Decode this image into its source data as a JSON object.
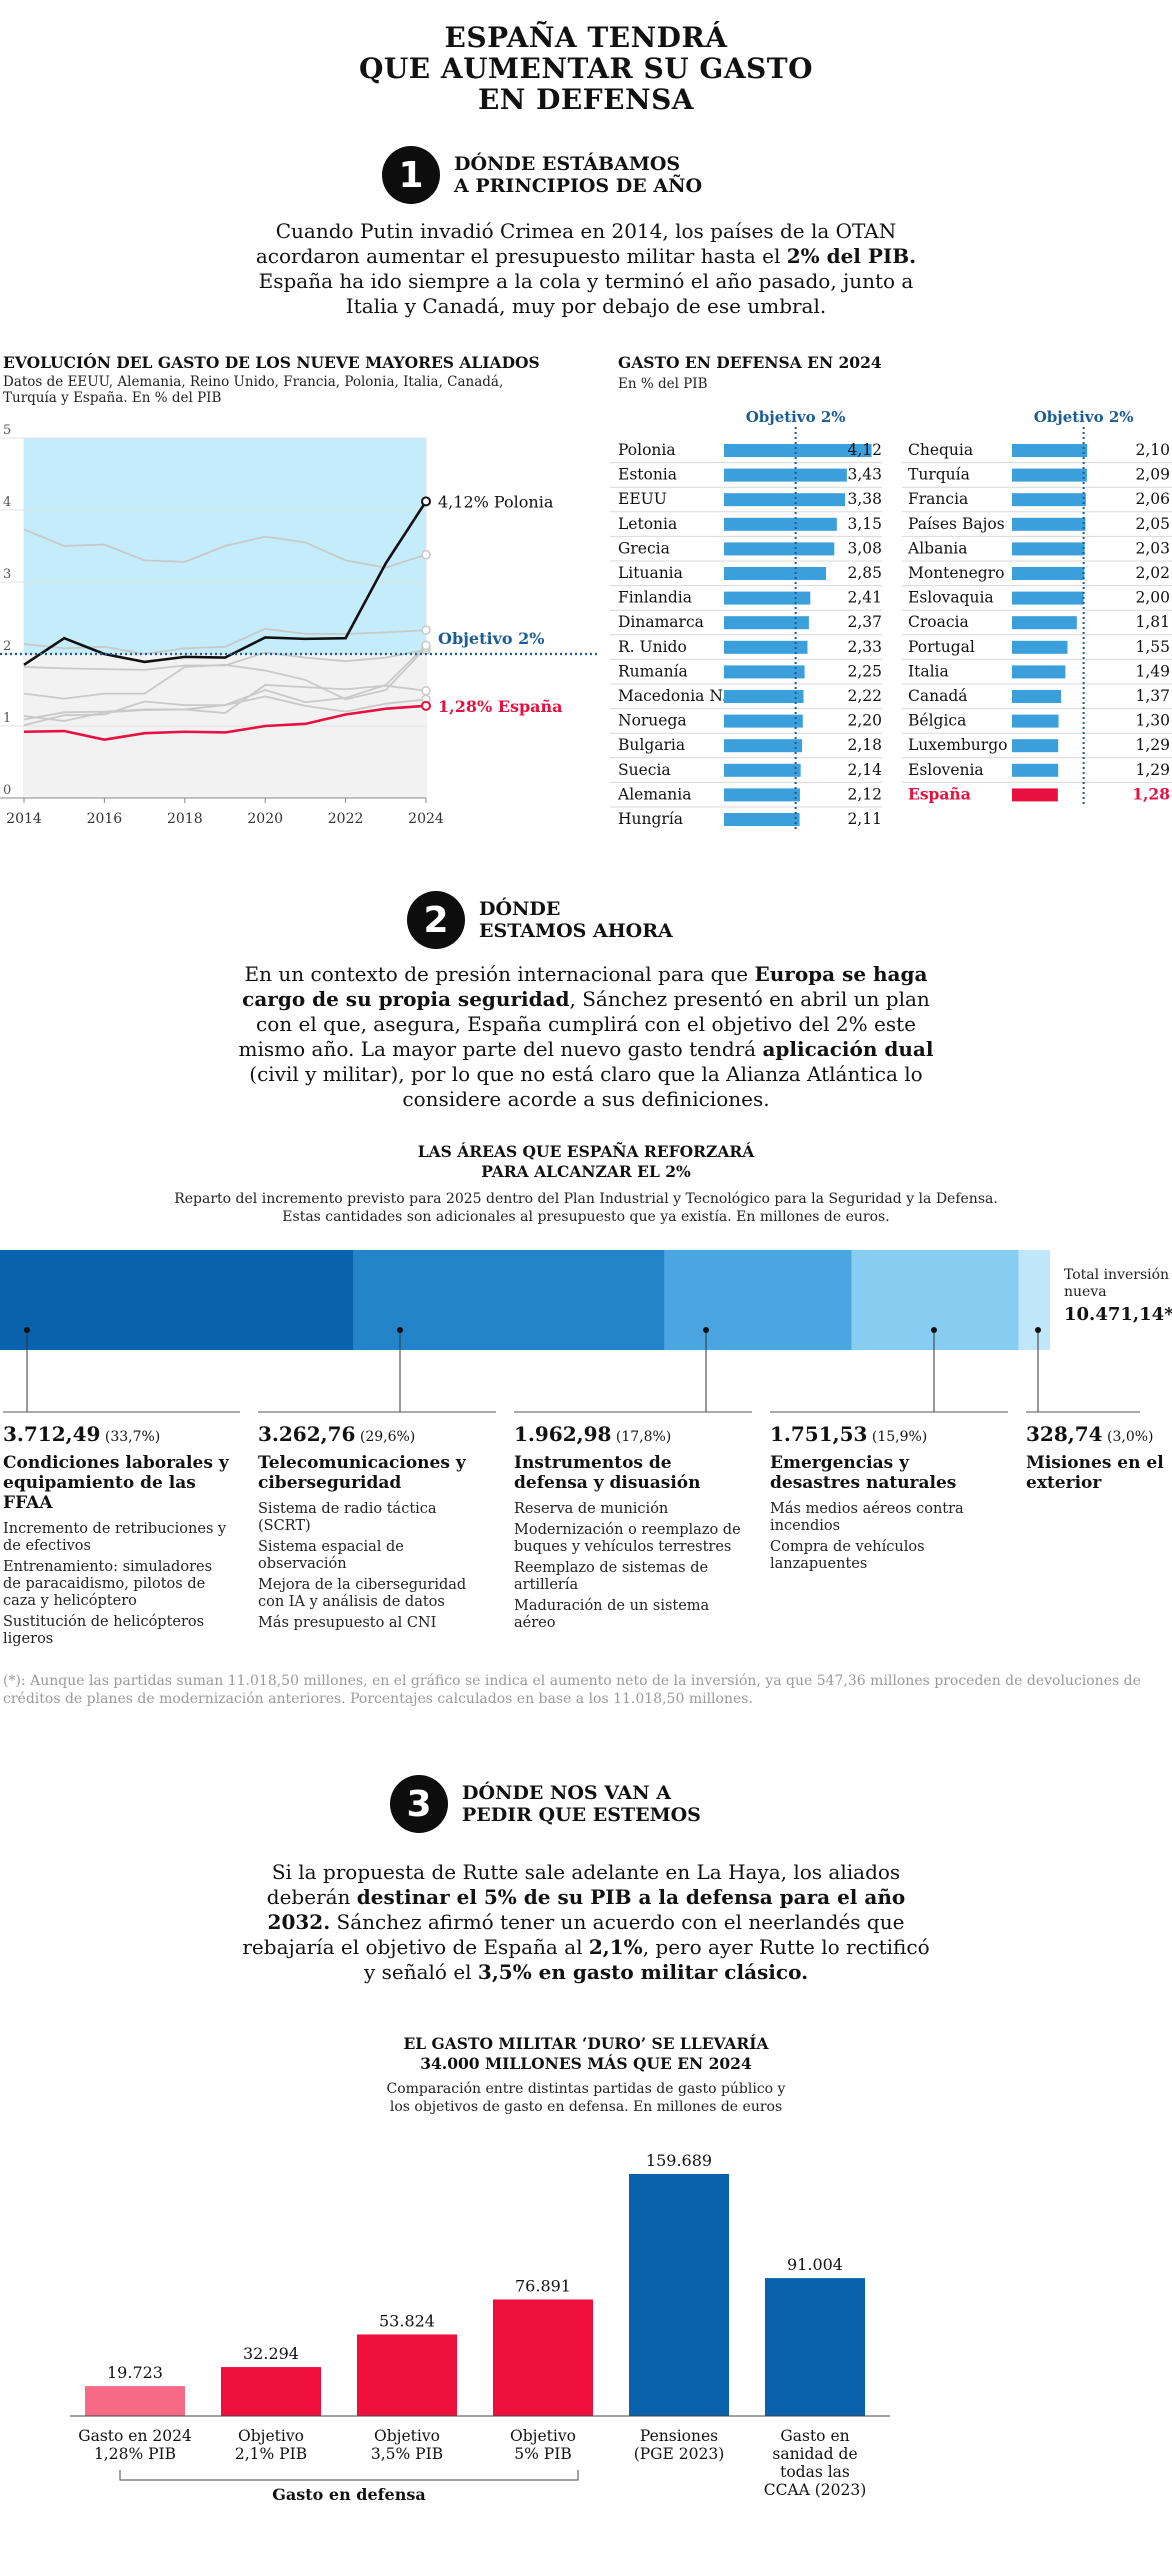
{
  "title": "ESPAÑA TENDRÁ\nQUE AUMENTAR SU GASTO\nEN DEFENSA",
  "section1": {
    "num": "1",
    "title": "DÓNDE ESTÁBAMOS\nA PRINCIPIOS DE AÑO",
    "text_a": "Cuando Putin invadió Crimea en 2014, los países de la OTAN acordaron aumentar el presupuesto militar hasta el ",
    "text_b": "2% del PIB.",
    "text_c": " España ha ido siempre a la cola y terminó el año pasado, junto a Italia y Canadá, muy por debajo de ese umbral."
  },
  "section2": {
    "num": "2",
    "title": "DÓNDE\nESTAMOS AHORA",
    "text_a": "En un contexto de presión internacional para que ",
    "text_b": "Europa se haga cargo de su propia seguridad",
    "text_c": ", Sánchez presentó en abril un plan con el que, asegura, España cumplirá con el objetivo del 2% este mismo año. La mayor parte del nuevo gasto tendrá ",
    "text_d": "aplicación dual",
    "text_e": " (civil y militar), por lo que no está claro que la Alianza Atlántica lo considere acorde a sus definiciones."
  },
  "section3": {
    "num": "3",
    "title": "DÓNDE NOS VAN A\nPEDIR QUE ESTEMOS",
    "text_a": "Si la propuesta de Rutte sale adelante en La Haya, los aliados deberán ",
    "text_b": "destinar el 5% de su PIB a la defensa para el año 2032.",
    "text_c": " Sánchez afirmó tener un acuerdo con el neerlandés que rebajaría el objetivo de España al ",
    "text_d": "2,1%",
    "text_e": ", pero ayer Rutte lo rectificó y señaló el ",
    "text_f": "3,5% en gasto militar clásico."
  },
  "chart_data": [
    {
      "type": "line",
      "title": "EVOLUCIÓN DEL GASTO DE LOS NUEVE MAYORES ALIADOS",
      "subtitle": "Datos de EEUU, Alemania, Reino Unido, Francia, Polonia, Italia, Canadá, Turquía y España. En % del PIB",
      "x": [
        2014,
        2015,
        2016,
        2017,
        2018,
        2019,
        2020,
        2021,
        2022,
        2023,
        2024
      ],
      "xticks": [
        "2014",
        "2016",
        "2018",
        "2020",
        "2022",
        "2024"
      ],
      "yticks": [
        "0",
        "1",
        "2",
        "3",
        "4",
        "5"
      ],
      "ylim": [
        0,
        5
      ],
      "highlight_from": 2014,
      "highlight_to": 2024,
      "target_value": 2,
      "target_label": "Objetivo 2%",
      "series": [
        {
          "name": "Polonia",
          "label": "4,12% Polonia",
          "color": "#111111",
          "values": [
            1.85,
            2.22,
            2.0,
            1.89,
            1.96,
            1.95,
            2.23,
            2.21,
            2.22,
            3.26,
            4.12
          ]
        },
        {
          "name": "España",
          "label": "1,28% España",
          "color": "#e8103f",
          "values": [
            0.92,
            0.93,
            0.81,
            0.9,
            0.92,
            0.91,
            1.0,
            1.03,
            1.16,
            1.24,
            1.28
          ]
        },
        {
          "name": "",
          "color": "#c9c9c9",
          "values": [
            3.73,
            3.5,
            3.52,
            3.3,
            3.28,
            3.5,
            3.63,
            3.55,
            3.3,
            3.2,
            3.38
          ]
        },
        {
          "name": "",
          "color": "#c9c9c9",
          "values": [
            2.14,
            2.08,
            2.1,
            2.0,
            2.08,
            2.1,
            2.35,
            2.28,
            2.28,
            2.3,
            2.33
          ]
        },
        {
          "name": "",
          "color": "#c9c9c9",
          "values": [
            1.82,
            1.8,
            1.79,
            1.78,
            1.84,
            1.84,
            2.02,
            1.95,
            1.9,
            1.95,
            2.06
          ]
        },
        {
          "name": "",
          "color": "#c9c9c9",
          "values": [
            1.45,
            1.38,
            1.45,
            1.45,
            1.82,
            1.85,
            1.77,
            1.64,
            1.37,
            1.5,
            2.09
          ]
        },
        {
          "name": "",
          "color": "#c9c9c9",
          "values": [
            1.09,
            1.19,
            1.2,
            1.23,
            1.23,
            1.29,
            1.5,
            1.33,
            1.39,
            1.57,
            2.12
          ]
        },
        {
          "name": "",
          "color": "#c9c9c9",
          "values": [
            1.14,
            1.07,
            1.19,
            1.22,
            1.23,
            1.18,
            1.57,
            1.54,
            1.51,
            1.56,
            1.49
          ]
        },
        {
          "name": "",
          "color": "#c9c9c9",
          "values": [
            1.01,
            1.15,
            1.16,
            1.34,
            1.29,
            1.29,
            1.41,
            1.28,
            1.2,
            1.31,
            1.37
          ]
        }
      ]
    },
    {
      "type": "bar",
      "title": "GASTO EN DEFENSA EN 2024",
      "subtitle": "En % del PIB",
      "target_label": "Objetivo 2%",
      "target_value": 2,
      "xmax": 4.3,
      "columns": [
        [
          {
            "name": "Polonia",
            "value": 4.12,
            "label": "4,12"
          },
          {
            "name": "Estonia",
            "value": 3.43,
            "label": "3,43"
          },
          {
            "name": "EEUU",
            "value": 3.38,
            "label": "3,38"
          },
          {
            "name": "Letonia",
            "value": 3.15,
            "label": "3,15"
          },
          {
            "name": "Grecia",
            "value": 3.08,
            "label": "3,08"
          },
          {
            "name": "Lituania",
            "value": 2.85,
            "label": "2,85"
          },
          {
            "name": "Finlandia",
            "value": 2.41,
            "label": "2,41"
          },
          {
            "name": "Dinamarca",
            "value": 2.37,
            "label": "2,37"
          },
          {
            "name": "R. Unido",
            "value": 2.33,
            "label": "2,33"
          },
          {
            "name": "Rumanía",
            "value": 2.25,
            "label": "2,25"
          },
          {
            "name": "Macedonia N.",
            "value": 2.22,
            "label": "2,22"
          },
          {
            "name": "Noruega",
            "value": 2.2,
            "label": "2,20"
          },
          {
            "name": "Bulgaria",
            "value": 2.18,
            "label": "2,18"
          },
          {
            "name": "Suecia",
            "value": 2.14,
            "label": "2,14"
          },
          {
            "name": "Alemania",
            "value": 2.12,
            "label": "2,12"
          },
          {
            "name": "Hungría",
            "value": 2.11,
            "label": "2,11"
          }
        ],
        [
          {
            "name": "Chequia",
            "value": 2.1,
            "label": "2,10"
          },
          {
            "name": "Turquía",
            "value": 2.09,
            "label": "2,09"
          },
          {
            "name": "Francia",
            "value": 2.06,
            "label": "2,06"
          },
          {
            "name": "Países Bajos",
            "value": 2.05,
            "label": "2,05"
          },
          {
            "name": "Albania",
            "value": 2.03,
            "label": "2,03"
          },
          {
            "name": "Montenegro",
            "value": 2.02,
            "label": "2,02"
          },
          {
            "name": "Eslovaquia",
            "value": 2.0,
            "label": "2,00"
          },
          {
            "name": "Croacia",
            "value": 1.81,
            "label": "1,81"
          },
          {
            "name": "Portugal",
            "value": 1.55,
            "label": "1,55"
          },
          {
            "name": "Italia",
            "value": 1.49,
            "label": "1,49"
          },
          {
            "name": "Canadá",
            "value": 1.37,
            "label": "1,37"
          },
          {
            "name": "Bélgica",
            "value": 1.3,
            "label": "1,30"
          },
          {
            "name": "Luxemburgo",
            "value": 1.29,
            "label": "1,29"
          },
          {
            "name": "Eslovenia",
            "value": 1.29,
            "label": "1,29"
          },
          {
            "name": "España",
            "value": 1.28,
            "label": "1,28",
            "highlight": true
          }
        ]
      ]
    },
    {
      "type": "bar",
      "orientation": "stacked-horizontal",
      "title": "LAS ÁREAS QUE ESPAÑA REFORZARÁ\nPARA ALCANZAR EL 2%",
      "subtitle": "Reparto del incremento previsto para 2025 dentro del Plan Industrial y Tecnológico para la Seguridad y la Defensa. Estas cantidades son adicionales al presupuesto que ya existía. En millones de euros.",
      "total_label": "Total inversión nueva",
      "total_value": "10.471,14*",
      "total": 11018.5,
      "segments": [
        {
          "value": 3712.49,
          "value_label": "3.712,49",
          "pct": "(33,7%)",
          "title": "Condiciones laborales y equipamiento de las FFAA",
          "color": "#0a62ad",
          "items": [
            "Incremento de retribuciones y de efectivos",
            "Entrenamiento: simuladores de paracaidismo, pilotos de caza y helicóptero",
            "Sustitución de helicópteros ligeros"
          ]
        },
        {
          "value": 3262.76,
          "value_label": "3.262,76",
          "pct": "(29,6%)",
          "title": "Telecomunicaciones y ciberseguridad",
          "color": "#2484c9",
          "items": [
            "Sistema de radio táctica (SCRT)",
            "Sistema espacial de observación",
            "Mejora de la ciberseguridad con IA y análisis de datos",
            "Más presupuesto al CNI"
          ]
        },
        {
          "value": 1962.98,
          "value_label": "1.962,98",
          "pct": "(17,8%)",
          "title": "Instrumentos de defensa y disuasión",
          "color": "#4aa5e0",
          "items": [
            "Reserva de munición",
            "Modernización o reemplazo de buques y vehículos terrestres",
            "Reemplazo de sistemas de artillería",
            "Maduración de un sistema aéreo"
          ]
        },
        {
          "value": 1751.53,
          "value_label": "1.751,53",
          "pct": "(15,9%)",
          "title": "Emergencias y desastres naturales",
          "color": "#86cdf1",
          "items": [
            "Más medios aéreos contra incendios",
            "Compra de vehículos lanzapuentes"
          ]
        },
        {
          "value": 328.74,
          "value_label": "328,74",
          "pct": "(3,0%)",
          "title": "Misiones en el exterior",
          "color": "#bfe6f9",
          "items": []
        }
      ],
      "footnote": "(*): Aunque las partidas suman 11.018,50 millones, en el gráfico se indica el aumento neto de la inversión, ya que 547,36 millones proceden de devoluciones de créditos de planes de modernización anteriores. Porcentajes calculados en base a los 11.018,50 millones."
    },
    {
      "type": "bar",
      "title": "EL GASTO MILITAR ‘DURO’ SE LLEVARÍA\n34.000 MILLONES MÁS QUE EN 2024",
      "subtitle": "Comparación entre distintas partidas de gasto público y\nlos objetivos de gasto en defensa. En millones de euros",
      "ymax": 159689,
      "categories": [
        "Gasto en 2024\n1,28% PIB",
        "Objetivo\n2,1% PIB",
        "Objetivo\n3,5% PIB",
        "Objetivo\n5% PIB",
        "Pensiones\n(PGE 2023)",
        "Gasto en\nsanidad de\ntodas las\nCCAA (2023)"
      ],
      "values": [
        19723,
        32294,
        53824,
        76891,
        159689,
        91004
      ],
      "value_labels": [
        "19.723",
        "32.294",
        "53.824",
        "76.891",
        "159.689",
        "91.004"
      ],
      "colors": [
        "#f76a86",
        "#ef0f3d",
        "#ef0f3d",
        "#ef0f3d",
        "#0a62ad",
        "#0a62ad"
      ],
      "group_label": "Gasto en defensa"
    }
  ]
}
